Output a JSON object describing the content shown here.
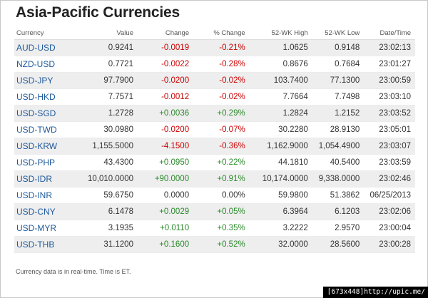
{
  "title": "Asia-Pacific Currencies",
  "columns": [
    "Currency",
    "Value",
    "Change",
    "% Change",
    "52-WK High",
    "52-WK Low",
    "Date/Time"
  ],
  "rows": [
    {
      "currency": "AUD-USD",
      "value": "0.9241",
      "change": "-0.0019",
      "pct": "-0.21%",
      "high": "1.0625",
      "low": "0.9148",
      "time": "23:02:13",
      "dir": "neg"
    },
    {
      "currency": "NZD-USD",
      "value": "0.7721",
      "change": "-0.0022",
      "pct": "-0.28%",
      "high": "0.8676",
      "low": "0.7684",
      "time": "23:01:27",
      "dir": "neg"
    },
    {
      "currency": "USD-JPY",
      "value": "97.7900",
      "change": "-0.0200",
      "pct": "-0.02%",
      "high": "103.7400",
      "low": "77.1300",
      "time": "23:00:59",
      "dir": "neg"
    },
    {
      "currency": "USD-HKD",
      "value": "7.7571",
      "change": "-0.0012",
      "pct": "-0.02%",
      "high": "7.7664",
      "low": "7.7498",
      "time": "23:03:10",
      "dir": "neg"
    },
    {
      "currency": "USD-SGD",
      "value": "1.2728",
      "change": "+0.0036",
      "pct": "+0.29%",
      "high": "1.2824",
      "low": "1.2152",
      "time": "23:03:52",
      "dir": "pos"
    },
    {
      "currency": "USD-TWD",
      "value": "30.0980",
      "change": "-0.0200",
      "pct": "-0.07%",
      "high": "30.2280",
      "low": "28.9130",
      "time": "23:05:01",
      "dir": "neg"
    },
    {
      "currency": "USD-KRW",
      "value": "1,155.5000",
      "change": "-4.1500",
      "pct": "-0.36%",
      "high": "1,162.9000",
      "low": "1,054.4900",
      "time": "23:03:07",
      "dir": "neg"
    },
    {
      "currency": "USD-PHP",
      "value": "43.4300",
      "change": "+0.0950",
      "pct": "+0.22%",
      "high": "44.1810",
      "low": "40.5400",
      "time": "23:03:59",
      "dir": "pos"
    },
    {
      "currency": "USD-IDR",
      "value": "10,010.0000",
      "change": "+90.0000",
      "pct": "+0.91%",
      "high": "10,174.0000",
      "low": "9,338.0000",
      "time": "23:02:46",
      "dir": "pos"
    },
    {
      "currency": "USD-INR",
      "value": "59.6750",
      "change": "0.0000",
      "pct": "0.00%",
      "high": "59.9800",
      "low": "51.3862",
      "time": "06/25/2013",
      "dir": "zero"
    },
    {
      "currency": "USD-CNY",
      "value": "6.1478",
      "change": "+0.0029",
      "pct": "+0.05%",
      "high": "6.3964",
      "low": "6.1203",
      "time": "23:02:06",
      "dir": "pos"
    },
    {
      "currency": "USD-MYR",
      "value": "3.1935",
      "change": "+0.0110",
      "pct": "+0.35%",
      "high": "3.2222",
      "low": "2.9570",
      "time": "23:00:04",
      "dir": "pos"
    },
    {
      "currency": "USD-THB",
      "value": "31.1200",
      "change": "+0.1600",
      "pct": "+0.52%",
      "high": "32.0000",
      "low": "28.5600",
      "time": "23:00:28",
      "dir": "pos"
    }
  ],
  "footnote": "Currency data is in real-time. Time is ET.",
  "watermark": "[673x448]http://upic.me/",
  "colors": {
    "link": "#1f5a9c",
    "negative": "#cc0000",
    "positive": "#2a8a2a",
    "stripe": "#eeeeee"
  }
}
